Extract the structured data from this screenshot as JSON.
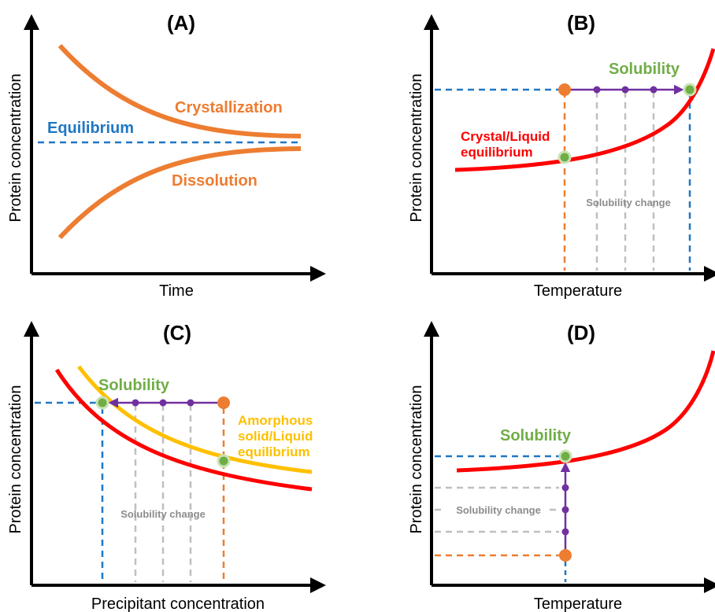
{
  "colors": {
    "orange": "#ED7D31",
    "red": "#FF0000",
    "blue": "#1F77C4",
    "green": "#70AD47",
    "purple": "#7030A0",
    "gold": "#FFC000",
    "gray": "#BFBFBF",
    "axis": "#000000"
  },
  "panels": {
    "A": {
      "label": "(A)",
      "xlabel": "Time",
      "ylabel": "Protein concentration",
      "crystallization": "Crystallization",
      "dissolution": "Dissolution",
      "equilibrium": "Equilibrium"
    },
    "B": {
      "label": "(B)",
      "xlabel": "Temperature",
      "ylabel": "Protein concentration",
      "solubility": "Solubility",
      "curve_line1": "Crystal/Liquid",
      "curve_line2": "equilibrium",
      "change": "Solubility change"
    },
    "C": {
      "label": "(C)",
      "xlabel": "Precipitant concentration",
      "ylabel": "Protein concentration",
      "solubility": "Solubility",
      "amorphous_line1": "Amorphous",
      "amorphous_line2": "solid/Liquid",
      "amorphous_line3": "equilibrium",
      "change": "Solubility change"
    },
    "D": {
      "label": "(D)",
      "xlabel": "Temperature",
      "ylabel": "Protein concentration",
      "solubility": "Solubility",
      "change": "Solubility change"
    }
  }
}
